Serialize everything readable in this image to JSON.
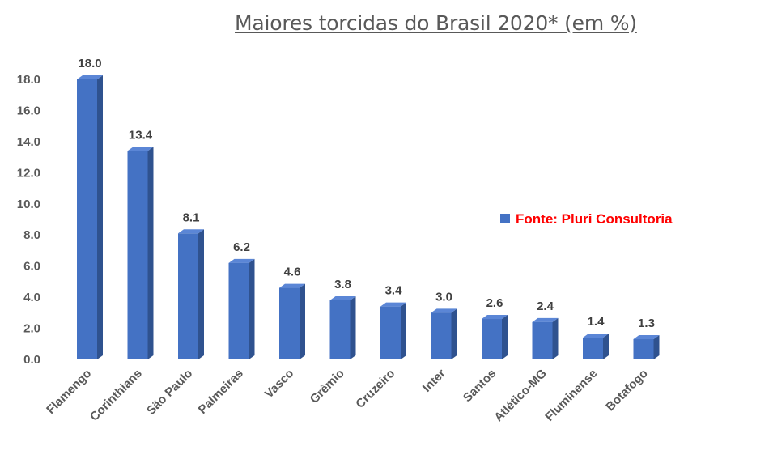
{
  "chart_data": {
    "type": "bar",
    "title": "Maiores torcidas do Brasil 2020* (em %)",
    "categories": [
      "Flamengo",
      "Corinthians",
      "São Paulo",
      "Palmeiras",
      "Vasco",
      "Grêmio",
      "Cruzeiro",
      "Inter",
      "Santos",
      "Atlético-MG",
      "Fluminense",
      "Botafogo"
    ],
    "series": [
      {
        "name": "Fonte: Pluri Consultoria",
        "values": [
          18.0,
          13.4,
          8.1,
          6.2,
          4.6,
          3.8,
          3.4,
          3.0,
          2.6,
          2.4,
          1.4,
          1.3
        ]
      }
    ],
    "data_labels": [
      "18.0",
      "13.4",
      "8.1",
      "6.2",
      "4.6",
      "3.8",
      "3.4",
      "3.0",
      "2.6",
      "2.4",
      "1.4",
      "1.3"
    ],
    "yticks": [
      "0.0",
      "2.0",
      "4.0",
      "6.0",
      "8.0",
      "10.0",
      "12.0",
      "14.0",
      "16.0",
      "18.0"
    ],
    "ylim": [
      0,
      18
    ],
    "grid": false,
    "legend_position": "right",
    "colors": {
      "bar_front": "#4472c4",
      "bar_side": "#2f528f",
      "bar_top": "#5b86d6",
      "legend_text": "#ff0000"
    }
  }
}
